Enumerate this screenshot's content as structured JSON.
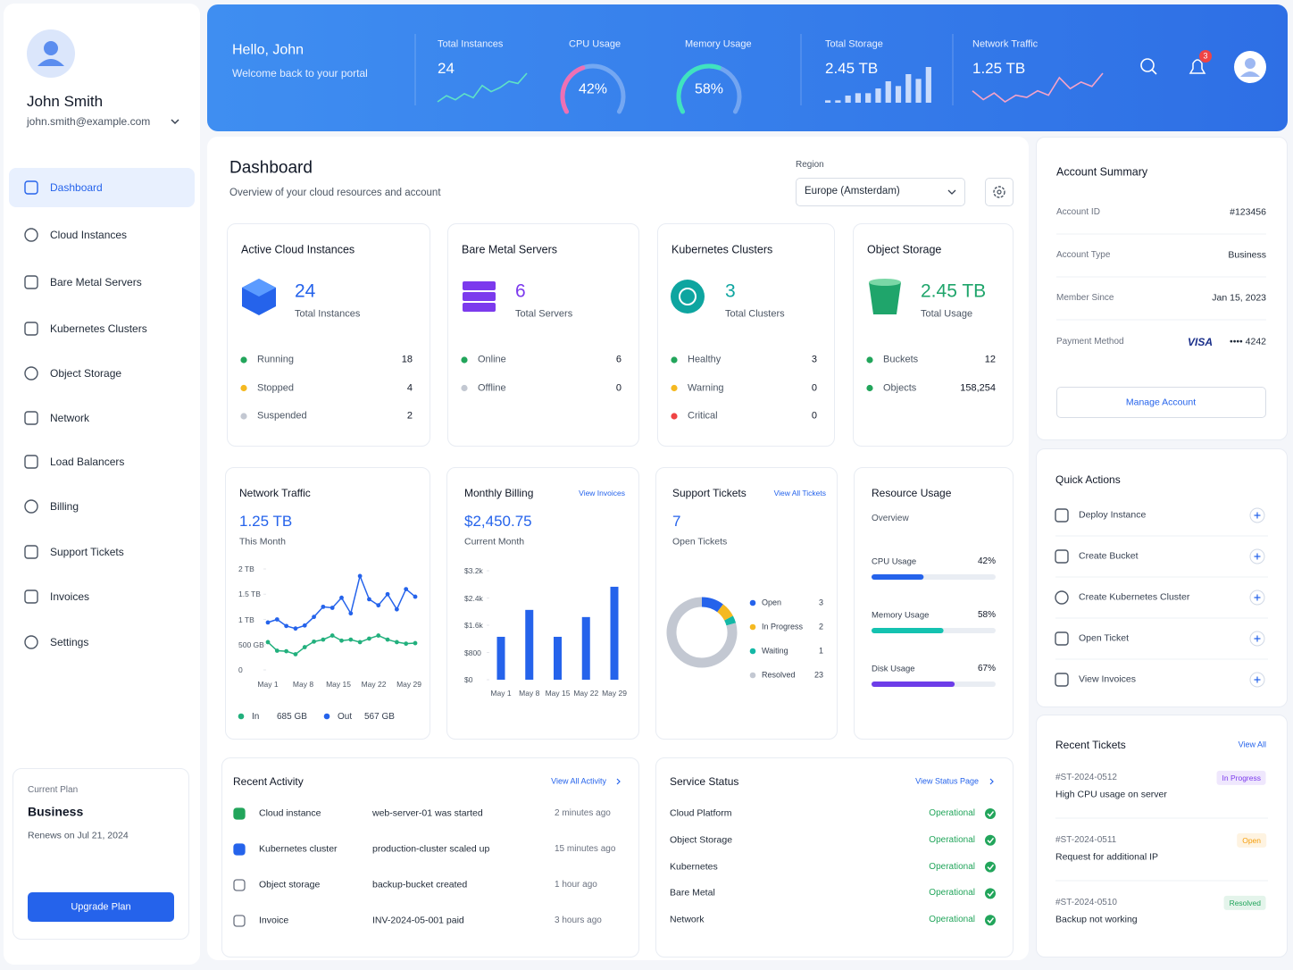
{
  "sidebar": {
    "name": "John Smith",
    "email": "john.smith@example.com",
    "nav": [
      "Dashboard",
      "Cloud Instances",
      "Bare Metal Servers",
      "Kubernetes Clusters",
      "Object Storage",
      "Network",
      "Load Balancers",
      "Billing",
      "Support Tickets",
      "Invoices",
      "Settings"
    ],
    "plan": {
      "label": "Current Plan",
      "name": "Business",
      "renews": "Renews on Jul 21, 2024",
      "button": "Upgrade Plan"
    }
  },
  "header": {
    "greeting": "Hello, John",
    "welcome": "Welcome back to your portal",
    "notifications": 3,
    "stats": [
      {
        "label": "Total Instances",
        "type": "spark",
        "value": 24,
        "color": "#5fe3c6",
        "points": [
          4,
          7,
          5,
          8,
          6,
          12,
          9,
          11,
          14,
          13,
          18
        ]
      },
      {
        "label": "CPU Usage",
        "type": "gauge",
        "value": 42,
        "value_label": "42%",
        "color": "#ee70b4"
      },
      {
        "label": "Memory Usage",
        "type": "gauge",
        "value": 58,
        "value_label": "58%",
        "color": "#3fe3bf"
      },
      {
        "label": "Total Storage",
        "type": "bars",
        "value": "2.45 TB",
        "color": "#e3ecff",
        "points": [
          1,
          1,
          3,
          4,
          4,
          6,
          9,
          7,
          12,
          10,
          15
        ]
      },
      {
        "label": "Network Traffic",
        "type": "spark",
        "value": "1.25 TB",
        "color": "#f6a3c8",
        "points": [
          8,
          4,
          7,
          3,
          6,
          5,
          8,
          6,
          14,
          9,
          12,
          10,
          16
        ]
      }
    ]
  },
  "dashboard": {
    "title": "Dashboard",
    "subtitle": "Overview of your cloud resources and account",
    "region_label": "Region",
    "region": "Europe (Amsterdam)",
    "resources": [
      {
        "title": "Active Cloud Instances",
        "value": 24,
        "caption": "Total Instances",
        "color": "#2563eb",
        "icon": "cube",
        "rows": [
          {
            "label": "Running",
            "value": 18,
            "color": "#22a55b"
          },
          {
            "label": "Stopped",
            "value": 4,
            "color": "#f5b921"
          },
          {
            "label": "Suspended",
            "value": 2,
            "color": "#c3c8d2"
          }
        ]
      },
      {
        "title": "Bare Metal Servers",
        "value": 6,
        "caption": "Total Servers",
        "color": "#7c3aed",
        "icon": "server",
        "rows": [
          {
            "label": "Online",
            "value": 6,
            "color": "#22a55b"
          },
          {
            "label": "Offline",
            "value": 0,
            "color": "#c3c8d2"
          }
        ]
      },
      {
        "title": "Kubernetes Clusters",
        "value": 3,
        "caption": "Total Clusters",
        "color": "#0ea5a0",
        "icon": "wheel",
        "rows": [
          {
            "label": "Healthy",
            "value": 3,
            "color": "#22a55b"
          },
          {
            "label": "Warning",
            "value": 0,
            "color": "#f5b921"
          },
          {
            "label": "Critical",
            "value": 0,
            "color": "#ef4444"
          }
        ]
      },
      {
        "title": "Object Storage",
        "value": "2.45 TB",
        "caption": "Total Usage",
        "color": "#1fa56b",
        "icon": "bucket",
        "rows": [
          {
            "label": "Buckets",
            "value": 12,
            "color": "#22a55b"
          },
          {
            "label": "Objects",
            "value": "158,254",
            "color": "#22a55b"
          }
        ]
      }
    ],
    "network_traffic": {
      "title": "Network Traffic",
      "value": "1.25 TB",
      "caption": "This Month",
      "ylim": [
        0,
        2000
      ],
      "yticks": [
        0,
        {
          "value": 500,
          "label": "500 GB"
        },
        {
          "value": 1000,
          "label": "1 TB"
        },
        {
          "value": 1500,
          "label": "1.5 TB"
        },
        {
          "value": 2000,
          "label": "2 TB"
        }
      ],
      "xlabels": [
        "May 1",
        "May 8",
        "May 15",
        "May 22",
        "May 29"
      ],
      "series": [
        {
          "name": "In",
          "color": "#22b07d",
          "total": "685 GB",
          "values": [
            550,
            380,
            370,
            310,
            450,
            560,
            600,
            680,
            580,
            600,
            550,
            620,
            680,
            600,
            550,
            520,
            530
          ]
        },
        {
          "name": "Out",
          "color": "#2563eb",
          "total": "567 GB",
          "values": [
            940,
            1000,
            870,
            820,
            880,
            1050,
            1250,
            1230,
            1430,
            1120,
            1860,
            1400,
            1280,
            1500,
            1200,
            1600,
            1450
          ]
        }
      ]
    },
    "billing": {
      "title": "Monthly Billing",
      "link": "View Invoices",
      "value": "$2,450.75",
      "caption": "Current Month",
      "ylim": [
        0,
        3200
      ],
      "yticks": [
        {
          "value": 0,
          "label": "$0"
        },
        {
          "value": 800,
          "label": "$800"
        },
        {
          "value": 1600,
          "label": "$1.6k"
        },
        {
          "value": 2400,
          "label": "$2.4k"
        },
        {
          "value": 3200,
          "label": "$3.2k"
        }
      ],
      "xlabels": [
        "May 1",
        "May 8",
        "May 15",
        "May 22",
        "May 29"
      ],
      "values": [
        1260,
        2050,
        1260,
        1840,
        2730
      ],
      "color": "#2563eb"
    },
    "tickets": {
      "title": "Support Tickets",
      "link": "View All Tickets",
      "value": 7,
      "caption": "Open Tickets",
      "segments": [
        {
          "name": "Open",
          "value": 3,
          "color": "#2563eb"
        },
        {
          "name": "In Progress",
          "value": 2,
          "color": "#f5b921"
        },
        {
          "name": "Waiting",
          "value": 1,
          "color": "#14b8a6"
        },
        {
          "name": "Resolved",
          "value": 23,
          "color": "#c3c8d2"
        }
      ]
    },
    "resource_usage": {
      "title": "Resource Usage",
      "caption": "Overview",
      "items": [
        {
          "label": "CPU Usage",
          "value": 42,
          "value_label": "42%",
          "color": "#2563eb"
        },
        {
          "label": "Memory Usage",
          "value": 58,
          "value_label": "58%",
          "color": "#14c2b0"
        },
        {
          "label": "Disk Usage",
          "value": 67,
          "value_label": "67%",
          "color": "#6d3de8"
        }
      ]
    },
    "activity": {
      "title": "Recent Activity",
      "link": "View All Activity",
      "rows": [
        {
          "type": "Cloud instance",
          "text": "web-server-01 was started",
          "time": "2 minutes ago",
          "color": "#22a55b"
        },
        {
          "type": "Kubernetes cluster",
          "text": "production-cluster scaled up",
          "time": "15 minutes ago",
          "color": "#2563eb"
        },
        {
          "type": "Object storage",
          "text": "backup-bucket created",
          "time": "1 hour ago",
          "color": "#6b7280"
        },
        {
          "type": "Invoice",
          "text": "INV-2024-05-001 paid",
          "time": "3 hours ago",
          "color": "#6b7280"
        }
      ]
    },
    "service_status": {
      "title": "Service Status",
      "link": "View Status Page",
      "rows": [
        {
          "name": "Cloud Platform",
          "status": "Operational"
        },
        {
          "name": "Object Storage",
          "status": "Operational"
        },
        {
          "name": "Kubernetes",
          "status": "Operational"
        },
        {
          "name": "Bare Metal",
          "status": "Operational"
        },
        {
          "name": "Network",
          "status": "Operational"
        }
      ]
    }
  },
  "account": {
    "title": "Account Summary",
    "rows": [
      {
        "label": "Account ID",
        "value": "#123456"
      },
      {
        "label": "Account Type",
        "value": "Business"
      },
      {
        "label": "Member Since",
        "value": "Jan 15, 2023"
      }
    ],
    "payment": {
      "label": "Payment Method",
      "brand": "VISA",
      "number": "•••• 4242"
    },
    "button": "Manage Account"
  },
  "quick_actions": {
    "title": "Quick Actions",
    "items": [
      "Deploy Instance",
      "Create Bucket",
      "Create Kubernetes Cluster",
      "Open Ticket",
      "View Invoices"
    ]
  },
  "recent_tickets": {
    "title": "Recent Tickets",
    "link": "View All",
    "items": [
      {
        "id": "#ST-2024-0512",
        "title": "High CPU usage on server",
        "status": "In Progress",
        "color": "#7c3aed"
      },
      {
        "id": "#ST-2024-0511",
        "title": "Request for additional IP",
        "status": "Open",
        "color": "#f59e0b"
      },
      {
        "id": "#ST-2024-0510",
        "title": "Backup not working",
        "status": "Resolved",
        "color": "#22a55b"
      }
    ]
  }
}
